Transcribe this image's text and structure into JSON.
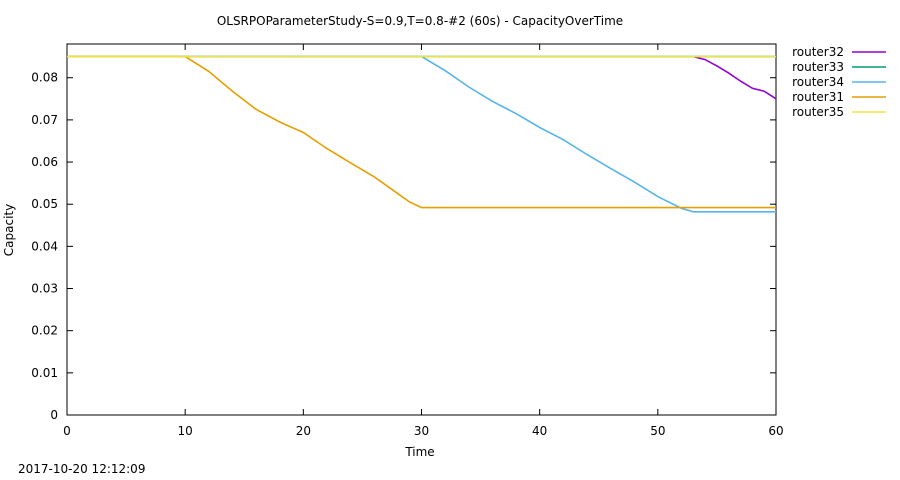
{
  "chart_data": {
    "type": "line",
    "title": "OLSRPOParameterStudy-S=0.9,T=0.8-#2 (60s) - CapacityOverTime",
    "xlabel": "Time",
    "ylabel": "Capacity",
    "xlim": [
      0,
      60
    ],
    "ylim": [
      0,
      0.088
    ],
    "xticks": [
      0,
      10,
      20,
      30,
      40,
      50,
      60
    ],
    "yticks": [
      0,
      0.01,
      0.02,
      0.03,
      0.04,
      0.05,
      0.06,
      0.07,
      0.08
    ],
    "xtick_labels": [
      "0",
      "10",
      "20",
      "30",
      "40",
      "50",
      "60"
    ],
    "ytick_labels": [
      "0",
      "0.01",
      "0.02",
      "0.03",
      "0.04",
      "0.05",
      "0.06",
      "0.07",
      "0.08"
    ],
    "grid": false,
    "legend_position": "outside-top-right",
    "series": [
      {
        "name": "router32",
        "color": "#9400d3",
        "x": [
          53,
          54,
          55,
          56,
          57,
          58,
          59,
          60
        ],
        "y": [
          0.085,
          0.0843,
          0.0828,
          0.0811,
          0.0792,
          0.0775,
          0.0768,
          0.075
        ]
      },
      {
        "name": "router33",
        "color": "#009e73",
        "x": [
          0,
          60
        ],
        "y": [
          0.085,
          0.085
        ]
      },
      {
        "name": "router34",
        "color": "#56b4e9",
        "x": [
          0,
          30,
          32,
          34,
          36,
          38,
          40,
          42,
          44,
          46,
          48,
          50,
          52,
          53,
          54,
          60
        ],
        "y": [
          0.085,
          0.085,
          0.0817,
          0.0778,
          0.0744,
          0.0715,
          0.0682,
          0.0653,
          0.0618,
          0.0585,
          0.0553,
          0.0518,
          0.049,
          0.0482,
          0.0482,
          0.0482
        ]
      },
      {
        "name": "router31",
        "color": "#e69f00",
        "x": [
          0,
          10,
          12,
          14,
          16,
          18,
          20,
          22,
          24,
          26,
          28,
          29,
          30,
          60
        ],
        "y": [
          0.085,
          0.085,
          0.0815,
          0.0768,
          0.0725,
          0.0695,
          0.067,
          0.0632,
          0.0598,
          0.0565,
          0.0525,
          0.0505,
          0.0492,
          0.0492
        ]
      },
      {
        "name": "router35",
        "color": "#f0e442",
        "x": [
          0,
          60
        ],
        "y": [
          0.085,
          0.085
        ]
      }
    ]
  },
  "footer": {
    "timestamp": "2017-10-20 12:12:09"
  }
}
